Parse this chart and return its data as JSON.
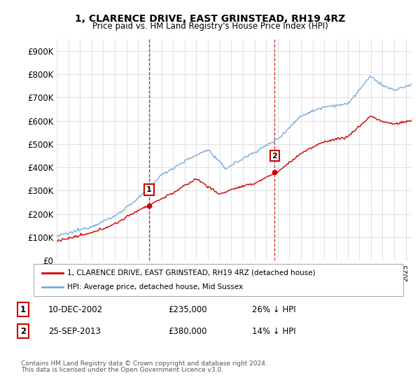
{
  "title": "1, CLARENCE DRIVE, EAST GRINSTEAD, RH19 4RZ",
  "subtitle": "Price paid vs. HM Land Registry's House Price Index (HPI)",
  "ylim": [
    0,
    950000
  ],
  "ytick_vals": [
    0,
    100000,
    200000,
    300000,
    400000,
    500000,
    600000,
    700000,
    800000,
    900000
  ],
  "ytick_labels": [
    "£0",
    "£100K",
    "£200K",
    "£300K",
    "£400K",
    "£500K",
    "£600K",
    "£700K",
    "£800K",
    "£900K"
  ],
  "sale1_date": 2002.94,
  "sale1_price": 235000,
  "sale1_label": "1",
  "sale1_text": "10-DEC-2002",
  "sale1_price_text": "£235,000",
  "sale1_pct_text": "26% ↓ HPI",
  "sale2_date": 2013.73,
  "sale2_price": 380000,
  "sale2_label": "2",
  "sale2_text": "25-SEP-2013",
  "sale2_price_text": "£380,000",
  "sale2_pct_text": "14% ↓ HPI",
  "hpi_color": "#7aabdb",
  "price_color": "#cc0000",
  "vline_color": "#cc0000",
  "legend_entry1": "1, CLARENCE DRIVE, EAST GRINSTEAD, RH19 4RZ (detached house)",
  "legend_entry2": "HPI: Average price, detached house, Mid Sussex",
  "footer1": "Contains HM Land Registry data © Crown copyright and database right 2024.",
  "footer2": "This data is licensed under the Open Government Licence v3.0.",
  "background_color": "#ffffff",
  "grid_color": "#e0e0e0",
  "xlim_left": 1995.0,
  "xlim_right": 2025.5,
  "label1_chart_yoffset": 70000,
  "label2_chart_yoffset": 70000
}
